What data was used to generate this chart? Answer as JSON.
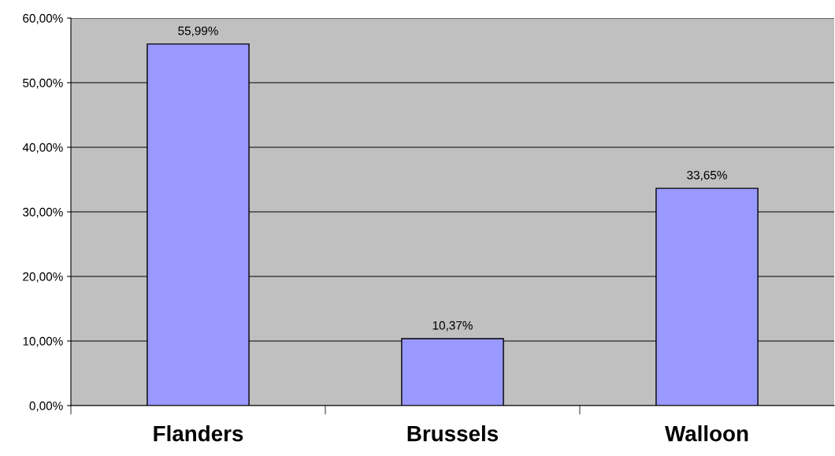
{
  "chart_data": {
    "type": "bar",
    "categories": [
      "Flanders",
      "Brussels",
      "Walloon"
    ],
    "values": [
      55.99,
      10.37,
      33.65
    ],
    "value_labels": [
      "55,99%",
      "10,37%",
      "33,65%"
    ],
    "color": "#9999ff",
    "ylim": [
      0,
      60
    ],
    "yticks": [
      {
        "value": 0,
        "label": "0,00%"
      },
      {
        "value": 10,
        "label": "10,00%"
      },
      {
        "value": 20,
        "label": "20,00%"
      },
      {
        "value": 30,
        "label": "30,00%"
      },
      {
        "value": 40,
        "label": "40,00%"
      },
      {
        "value": 50,
        "label": "50,00%"
      },
      {
        "value": 60,
        "label": "60,00%"
      }
    ],
    "grid": "y",
    "legend": false
  }
}
